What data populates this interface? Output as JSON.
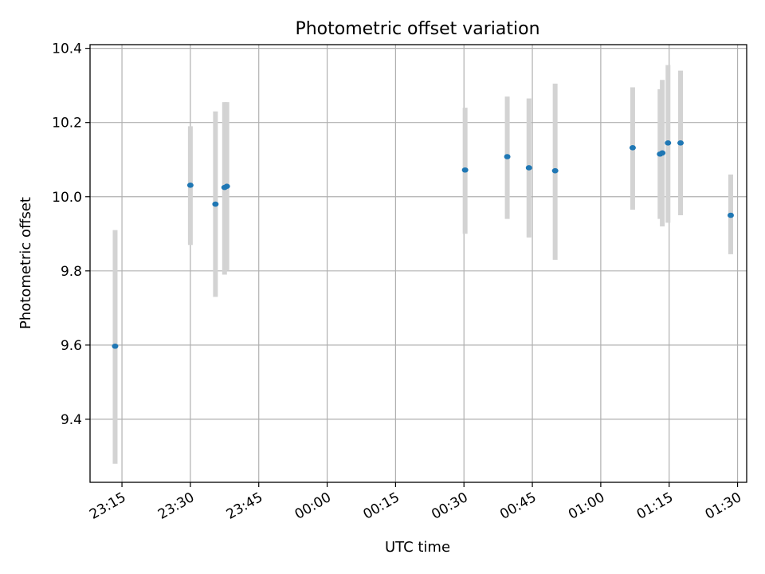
{
  "chart_data": {
    "type": "scatter",
    "title": "Photometric offset variation",
    "xlabel": "UTC time",
    "ylabel": "Photometric offset",
    "grid": true,
    "x_unit": "UTC clock time",
    "xlim": [
      "23:08",
      "01:32"
    ],
    "ylim": [
      9.23,
      10.41
    ],
    "xticks": [
      "23:15",
      "23:30",
      "23:45",
      "00:00",
      "00:15",
      "00:30",
      "00:45",
      "01:00",
      "01:15",
      "01:30"
    ],
    "yticks": [
      9.4,
      9.6,
      9.8,
      10.0,
      10.2,
      10.4
    ],
    "marker_color": "#1f77b4",
    "errorbar_color": "#d3d3d3",
    "points": [
      {
        "time": "23:13:30",
        "y": 9.597,
        "yerr_low": 9.28,
        "yerr_high": 9.91
      },
      {
        "time": "23:30:00",
        "y": 10.031,
        "yerr_low": 9.87,
        "yerr_high": 10.19
      },
      {
        "time": "23:35:30",
        "y": 9.98,
        "yerr_low": 9.73,
        "yerr_high": 10.23
      },
      {
        "time": "23:37:30",
        "y": 10.025,
        "yerr_low": 9.79,
        "yerr_high": 10.255
      },
      {
        "time": "23:38:00",
        "y": 10.028,
        "yerr_low": 9.8,
        "yerr_high": 10.255
      },
      {
        "time": "00:30:15",
        "y": 10.072,
        "yerr_low": 9.9,
        "yerr_high": 10.24
      },
      {
        "time": "00:39:30",
        "y": 10.108,
        "yerr_low": 9.94,
        "yerr_high": 10.27
      },
      {
        "time": "00:44:15",
        "y": 10.078,
        "yerr_low": 9.89,
        "yerr_high": 10.265
      },
      {
        "time": "00:50:00",
        "y": 10.07,
        "yerr_low": 9.83,
        "yerr_high": 10.305
      },
      {
        "time": "01:07:00",
        "y": 10.132,
        "yerr_low": 9.965,
        "yerr_high": 10.295
      },
      {
        "time": "01:13:00",
        "y": 10.115,
        "yerr_low": 9.94,
        "yerr_high": 10.29
      },
      {
        "time": "01:13:30",
        "y": 10.118,
        "yerr_low": 9.92,
        "yerr_high": 10.315
      },
      {
        "time": "01:14:45",
        "y": 10.145,
        "yerr_low": 9.93,
        "yerr_high": 10.355
      },
      {
        "time": "01:17:30",
        "y": 10.145,
        "yerr_low": 9.95,
        "yerr_high": 10.34
      },
      {
        "time": "01:28:30",
        "y": 9.95,
        "yerr_low": 9.845,
        "yerr_high": 10.06
      }
    ]
  }
}
